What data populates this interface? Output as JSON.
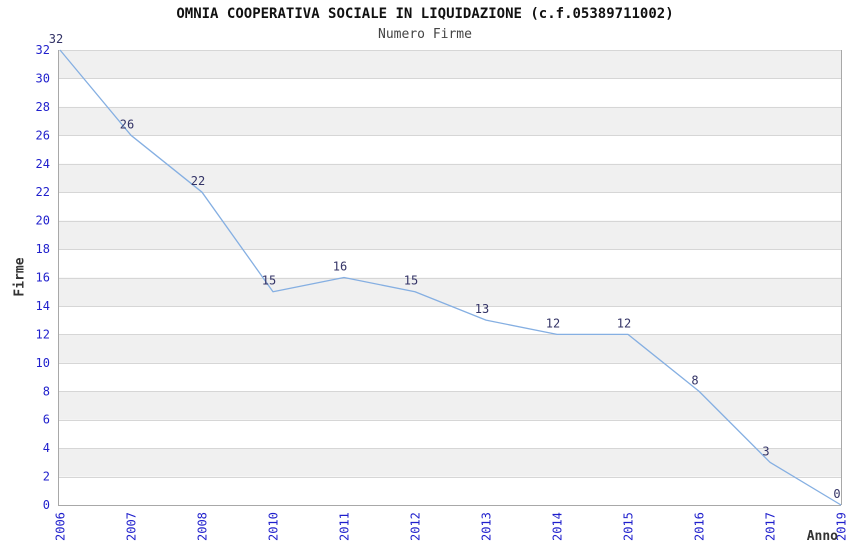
{
  "chart_data": {
    "type": "line",
    "title": "OMNIA COOPERATIVA SOCIALE IN LIQUIDAZIONE (c.f.05389711002)",
    "subtitle": "Numero Firme",
    "xlabel": "Anno",
    "ylabel": "Firme",
    "categories": [
      "2006",
      "2007",
      "2008",
      "2010",
      "2011",
      "2012",
      "2013",
      "2014",
      "2015",
      "2016",
      "2017",
      "2019"
    ],
    "values": [
      32,
      26,
      22,
      15,
      16,
      15,
      13,
      12,
      12,
      8,
      3,
      0
    ],
    "value_labels_shown": true,
    "ylim": [
      0,
      32
    ],
    "ytick_step": 2,
    "grid": "horizontal-gridlines-with-alternating-bands",
    "legend": "none",
    "colors": {
      "line": "#85afe2",
      "tick_labels": "#1f1fcc",
      "value_labels": "#333366",
      "band_fill": "#f0f0f0",
      "gridline": "#d6d6d6",
      "axis_border": "#a8a8a8",
      "title": "#111111",
      "subtitle": "#444444",
      "axis_titles": "#333333",
      "background": "#ffffff"
    }
  }
}
